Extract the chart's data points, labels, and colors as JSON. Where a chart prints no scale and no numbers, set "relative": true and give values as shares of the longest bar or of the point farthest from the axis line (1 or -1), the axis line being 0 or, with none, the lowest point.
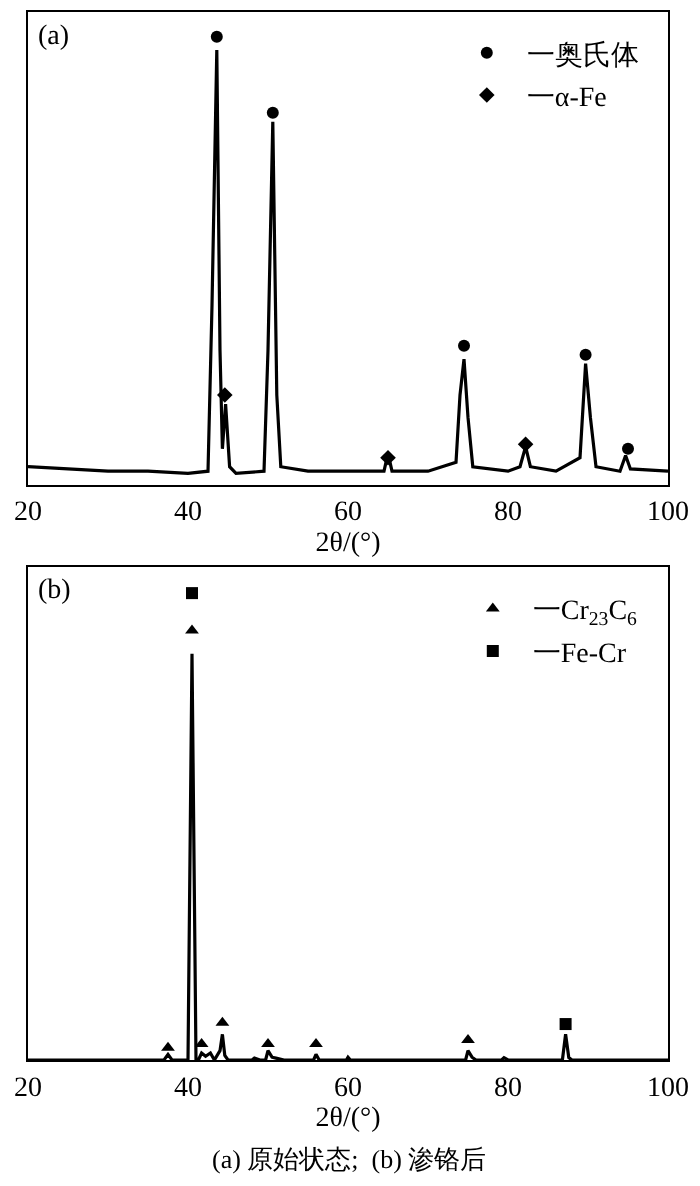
{
  "chart_data": [
    {
      "type": "line",
      "xlabel": "2θ/(°)",
      "xlim": [
        20,
        100
      ],
      "xticks": [
        20,
        40,
        60,
        80,
        100
      ],
      "relative": true,
      "legend": "top right",
      "annotations": [
        "(a)"
      ],
      "series": [
        {
          "color": "#000000",
          "marker": "none",
          "x": [
            20,
            25,
            30,
            35,
            40,
            42.5,
            43.0,
            43.6,
            44.0,
            44.3,
            44.7,
            45.2,
            46,
            49.5,
            50.0,
            50.6,
            51.1,
            51.6,
            55,
            60,
            64.5,
            65,
            65.5,
            70,
            73.5,
            74.0,
            74.5,
            75,
            75.6,
            80,
            81.5,
            82.2,
            82.8,
            86,
            89,
            89.7,
            90.3,
            91,
            94,
            94.7,
            95.3,
            100
          ],
          "values": [
            0.04,
            0.035,
            0.03,
            0.03,
            0.025,
            0.03,
            0.4,
            0.97,
            0.3,
            0.08,
            0.18,
            0.04,
            0.025,
            0.03,
            0.3,
            0.81,
            0.2,
            0.04,
            0.03,
            0.03,
            0.03,
            0.07,
            0.03,
            0.03,
            0.05,
            0.2,
            0.28,
            0.15,
            0.04,
            0.03,
            0.04,
            0.085,
            0.04,
            0.03,
            0.06,
            0.27,
            0.15,
            0.04,
            0.03,
            0.065,
            0.035,
            0.03
          ]
        },
        {
          "type": "scatter",
          "name": "一奥氏体",
          "color": "#000000",
          "marker": "circle",
          "x": [
            43.6,
            50.6,
            74.5,
            89.7,
            95.0
          ],
          "values": [
            1.0,
            0.83,
            0.31,
            0.29,
            0.08
          ]
        },
        {
          "type": "scatter",
          "name": "一α-Fe",
          "color": "#000000",
          "marker": "diamond",
          "x": [
            44.6,
            65.0,
            82.2
          ],
          "values": [
            0.2,
            0.06,
            0.09
          ]
        }
      ]
    },
    {
      "type": "line",
      "xlabel": "2θ/(°)",
      "xlim": [
        20,
        100
      ],
      "xticks": [
        20,
        40,
        60,
        80,
        100
      ],
      "relative": true,
      "legend": "top right",
      "annotations": [
        "(b)",
        "(a) 原始状态;  (b) 渗铬后"
      ],
      "series": [
        {
          "color": "#000000",
          "marker": "none",
          "x": [
            20,
            37,
            37.5,
            38,
            40.0,
            40.5,
            41.0,
            41.3,
            41.7,
            42.2,
            42.8,
            43.3,
            44.0,
            44.3,
            44.6,
            45,
            48,
            48.3,
            49,
            49.7,
            50,
            50.5,
            51,
            52,
            55.7,
            56,
            56.4,
            59.8,
            60,
            60.3,
            74.7,
            75,
            75.5,
            76,
            79.2,
            79.5,
            80,
            86.8,
            87.2,
            87.6,
            88,
            100
          ],
          "values": [
            0,
            0,
            0.012,
            0,
            0,
            0.87,
            0,
            0,
            0.015,
            0.008,
            0.015,
            0,
            0.02,
            0.055,
            0.01,
            0,
            0,
            0.004,
            0,
            0,
            0.02,
            0.006,
            0.004,
            0,
            0,
            0.012,
            0,
            0,
            0.006,
            0,
            0,
            0.02,
            0.006,
            0,
            0,
            0.005,
            0,
            0,
            0.055,
            0.005,
            0,
            0
          ]
        },
        {
          "type": "scatter",
          "name": "一Cr$_{23}$C$_{6}$",
          "color": "#000000",
          "marker": "triangle",
          "x": [
            37.5,
            40.5,
            41.7,
            44.3,
            50.0,
            56.0,
            75.0
          ],
          "values": [
            0.026,
            0.92,
            0.034,
            0.08,
            0.034,
            0.034,
            0.043
          ]
        },
        {
          "type": "scatter",
          "name": "一Fe-Cr",
          "color": "#000000",
          "marker": "square",
          "x": [
            40.5,
            87.2
          ],
          "values": [
            1.0,
            0.077
          ]
        }
      ]
    }
  ]
}
